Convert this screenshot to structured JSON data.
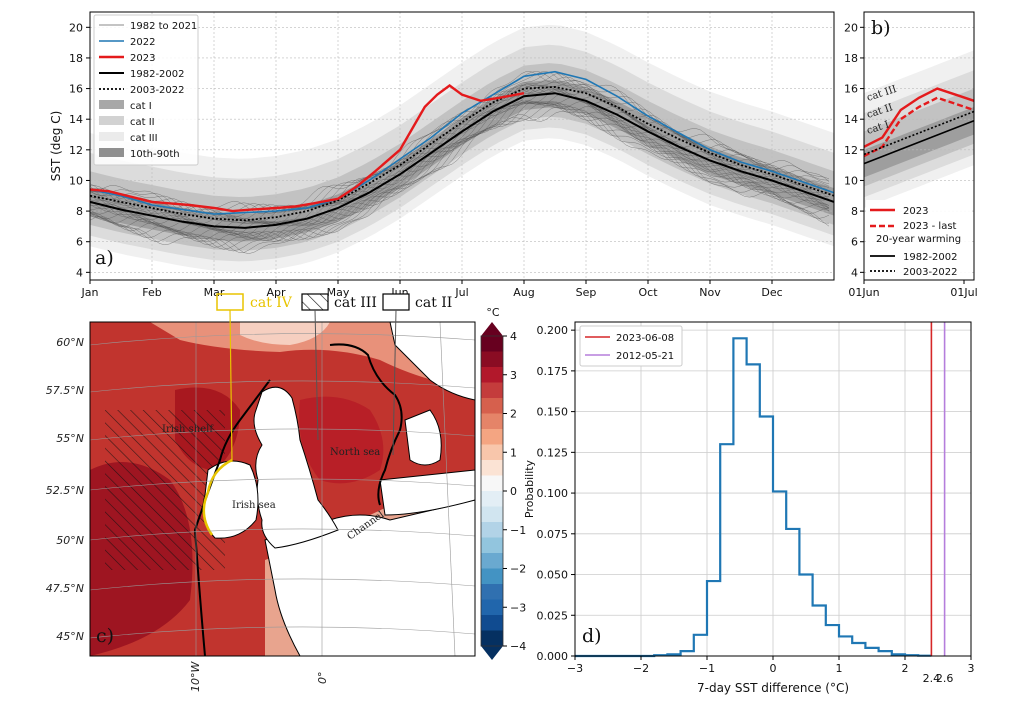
{
  "chart_data": [
    {
      "panel": "a)",
      "type": "line",
      "ylabel": "SST (deg C)",
      "ylim": [
        3.5,
        21
      ],
      "yticks": [
        4,
        6,
        8,
        10,
        12,
        14,
        16,
        18,
        20
      ],
      "x_ticks": [
        "Jan",
        "Feb",
        "Mar",
        "Apr",
        "May",
        "Jun",
        "Jul",
        "Aug",
        "Sep",
        "Oct",
        "Nov",
        "Dec"
      ],
      "grid": true,
      "legend_position": "top-left",
      "legend": [
        "1982 to 2021",
        "2022",
        "2023",
        "1982-2002",
        "2003-2022",
        "cat I",
        "cat II",
        "cat III",
        "10th-90th"
      ],
      "series": [
        {
          "name": "1982-2002",
          "x": [
            0,
            0.5,
            1,
            1.5,
            2,
            2.5,
            3,
            3.5,
            4,
            4.5,
            5,
            5.5,
            6,
            6.5,
            7,
            7.5,
            8,
            8.5,
            9,
            9.5,
            10,
            10.5,
            11,
            11.5,
            12
          ],
          "values": [
            8.6,
            8.1,
            7.7,
            7.3,
            7.0,
            6.9,
            7.1,
            7.5,
            8.2,
            9.2,
            10.4,
            11.8,
            13.2,
            14.5,
            15.5,
            15.7,
            15.2,
            14.3,
            13.2,
            12.2,
            11.3,
            10.6,
            10.0,
            9.3,
            8.6
          ]
        },
        {
          "name": "2003-2022",
          "x": [
            0,
            0.5,
            1,
            1.5,
            2,
            2.5,
            3,
            3.5,
            4,
            4.5,
            5,
            5.5,
            6,
            6.5,
            7,
            7.5,
            8,
            8.5,
            9,
            9.5,
            10,
            10.5,
            11,
            11.5,
            12
          ],
          "values": [
            9.0,
            8.6,
            8.2,
            7.8,
            7.5,
            7.4,
            7.6,
            8.0,
            8.7,
            9.8,
            11.0,
            12.4,
            13.8,
            15.1,
            16.0,
            16.1,
            15.7,
            14.8,
            13.7,
            12.7,
            11.8,
            11.0,
            10.4,
            9.7,
            9.0
          ]
        },
        {
          "name": "2022",
          "x": [
            0,
            0.5,
            1,
            1.5,
            2,
            2.5,
            3,
            3.5,
            4,
            4.5,
            5,
            5.5,
            6,
            6.5,
            7,
            7.5,
            8,
            8.5,
            9,
            9.5,
            10,
            10.5,
            11,
            11.5,
            12
          ],
          "values": [
            9.4,
            9.0,
            8.4,
            8.1,
            7.8,
            7.9,
            8.0,
            8.2,
            8.8,
            10.0,
            11.4,
            12.8,
            14.4,
            15.6,
            16.8,
            17.1,
            16.6,
            15.5,
            14.2,
            13.1,
            12.0,
            11.2,
            10.6,
            9.9,
            9.2
          ]
        },
        {
          "name": "2023",
          "x": [
            0,
            0.3,
            0.6,
            1,
            1.3,
            1.6,
            2,
            2.3,
            2.6,
            3,
            3.3,
            3.6,
            4,
            4.3,
            4.6,
            5,
            5.2,
            5.4,
            5.6,
            5.8,
            6,
            6.3,
            6.6,
            7
          ],
          "values": [
            9.4,
            9.3,
            9.0,
            8.6,
            8.5,
            8.4,
            8.2,
            8.0,
            8.1,
            8.2,
            8.3,
            8.5,
            8.8,
            9.6,
            10.6,
            12.0,
            13.4,
            14.8,
            15.6,
            16.2,
            15.6,
            15.2,
            15.4,
            15.7
          ]
        }
      ]
    },
    {
      "panel": "b)",
      "type": "line",
      "ylim": [
        3.5,
        21
      ],
      "yticks": [
        4,
        6,
        8,
        10,
        12,
        14,
        16,
        18,
        20
      ],
      "x_ticks": [
        "01Jun",
        "01Jul"
      ],
      "legend_position": "bottom-right",
      "band_labels": [
        "cat III",
        "cat II",
        "cat I"
      ],
      "legend": [
        "2023",
        "2023 - last 20-year warming",
        "1982-2002",
        "2003-2022"
      ],
      "series": [
        {
          "name": "2023",
          "x": [
            0,
            5,
            10,
            15,
            20,
            25,
            30
          ],
          "values": [
            12.2,
            12.8,
            14.6,
            15.4,
            16.0,
            15.6,
            15.2
          ]
        },
        {
          "name": "2023 - last 20-year warming",
          "x": [
            0,
            5,
            10,
            15,
            20,
            25,
            30
          ],
          "values": [
            11.6,
            12.2,
            14.0,
            14.8,
            15.4,
            15.0,
            14.6
          ]
        },
        {
          "name": "1982-2002",
          "x": [
            0,
            30
          ],
          "values": [
            11.1,
            13.9
          ]
        },
        {
          "name": "2003-2022",
          "x": [
            0,
            30
          ],
          "values": [
            11.7,
            14.5
          ]
        }
      ]
    },
    {
      "panel": "c)",
      "type": "heatmap",
      "colorbar_unit": "°C",
      "colorbar_ticks": [
        4,
        3,
        2,
        1,
        0,
        -1,
        -2,
        -3,
        -4
      ],
      "lat_labels": [
        "60°N",
        "57.5°N",
        "55°N",
        "52.5°N",
        "50°N",
        "47.5°N",
        "45°N"
      ],
      "lon_labels": [
        "10°W",
        "0°"
      ],
      "category_labels": [
        "cat IV",
        "cat III",
        "cat II"
      ],
      "region_labels": [
        "Irish shelf",
        "Irish sea",
        "North sea",
        "Channel"
      ]
    },
    {
      "panel": "d)",
      "type": "bar",
      "xlabel": "7-day SST difference (°C)",
      "ylabel": "Probability",
      "xlim": [
        -3,
        3
      ],
      "ylim": [
        0,
        0.205
      ],
      "xticks": [
        -3,
        -2,
        -1,
        0,
        1,
        2,
        3
      ],
      "yticks": [
        0.0,
        0.025,
        0.05,
        0.075,
        0.1,
        0.125,
        0.15,
        0.175,
        0.2
      ],
      "bin_edges": [
        -3.0,
        -2.8,
        -2.6,
        -2.4,
        -2.2,
        -2.0,
        -1.8,
        -1.6,
        -1.4,
        -1.2,
        -1.0,
        -0.8,
        -0.6,
        -0.4,
        -0.2,
        0.0,
        0.2,
        0.4,
        0.6,
        0.8,
        1.0,
        1.2,
        1.4,
        1.6,
        1.8,
        2.0,
        2.2,
        2.4
      ],
      "values": [
        0,
        0,
        0,
        0,
        0,
        0,
        0.0005,
        0.001,
        0.003,
        0.013,
        0.046,
        0.13,
        0.195,
        0.179,
        0.147,
        0.101,
        0.078,
        0.05,
        0.031,
        0.019,
        0.012,
        0.008,
        0.005,
        0.003,
        0.001,
        0.0005,
        0.0002
      ],
      "legend_position": "top-left",
      "vlines": [
        {
          "name": "2023-06-08",
          "x": 2.4,
          "label": "2.4",
          "color": "#d62728"
        },
        {
          "name": "2012-05-21",
          "x": 2.6,
          "label": "2.6",
          "color": "#b57edc"
        }
      ]
    }
  ],
  "colors": {
    "red": "#e41a1c",
    "blue": "#1f77b4",
    "black": "#000000",
    "cat_iv": "#e8c400",
    "vline_red": "#d62728",
    "vline_purple": "#b57edc"
  },
  "legend_a": {
    "hist": "1982 to 2021",
    "y2022": "2022",
    "y2023": "2023",
    "clim1": "1982-2002",
    "clim2": "2003-2022",
    "cat1": "cat I",
    "cat2": "cat II",
    "cat3": "cat III",
    "pct": "10th-90th"
  },
  "legend_b": {
    "y2023": "2023",
    "warm1": "2023 - last",
    "warm2": "20-year warming",
    "clim1": "1982-2002",
    "clim2": "2003-2022"
  },
  "legend_d": {
    "v1": "2023-06-08",
    "v2": "2012-05-21"
  }
}
